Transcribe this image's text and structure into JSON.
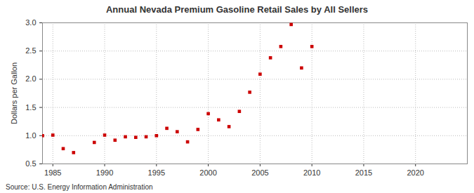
{
  "chart_data": {
    "type": "scatter",
    "title": "Annual Nevada Premium Gasoline Retail Sales by All Sellers",
    "y_label": "Dollars per Gallon",
    "caption": "Source: U.S. Energy Information Administration",
    "x": [
      1984,
      1985,
      1986,
      1987,
      1989,
      1990,
      1991,
      1992,
      1993,
      1994,
      1995,
      1996,
      1997,
      1998,
      1999,
      2000,
      2001,
      2002,
      2003,
      2004,
      2005,
      2006,
      2007,
      2008,
      2009,
      2010
    ],
    "values": [
      1.0,
      1.01,
      0.77,
      0.7,
      0.88,
      1.01,
      0.92,
      0.98,
      0.97,
      0.98,
      1.0,
      1.13,
      1.07,
      0.89,
      1.11,
      1.39,
      1.28,
      1.16,
      1.43,
      1.77,
      2.09,
      2.38,
      2.58,
      2.97,
      2.2,
      2.58
    ],
    "color": "#cc0000",
    "marker": "square",
    "xlim": [
      1984,
      2025
    ],
    "xticks": [
      1985,
      1990,
      1995,
      2000,
      2005,
      2010,
      2015,
      2020
    ],
    "ylim": [
      0.5,
      3.0
    ],
    "yticks": [
      0.5,
      {
        "value": 1,
        "label": "1.0"
      },
      1.5,
      {
        "value": 2,
        "label": "2.0"
      },
      2.5,
      {
        "value": 3,
        "label": "3.0"
      }
    ],
    "grid": true
  }
}
